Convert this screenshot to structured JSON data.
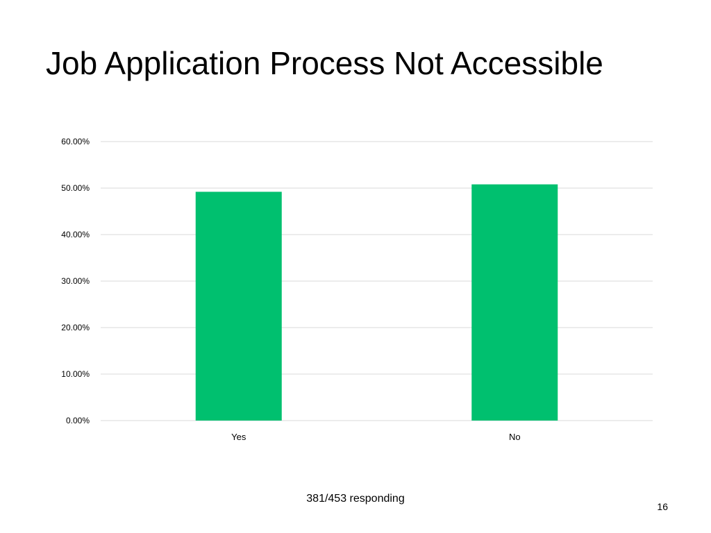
{
  "slide": {
    "title": "Job Application Process Not Accessible",
    "note": "381/453 responding",
    "page_number": "16"
  },
  "colors": {
    "bar": "#00c06f",
    "gridline": "#d9d9d9",
    "tick_text": "#000000"
  },
  "chart_data": {
    "type": "bar",
    "categories": [
      "Yes",
      "No"
    ],
    "values": [
      49.2,
      50.8
    ],
    "value_unit": "%",
    "ylim": [
      0,
      60
    ],
    "yticks": [
      0,
      10,
      20,
      30,
      40,
      50,
      60
    ],
    "ytick_labels": [
      "0.00%",
      "10.00%",
      "20.00%",
      "30.00%",
      "40.00%",
      "50.00%",
      "60.00%"
    ],
    "grid": true,
    "legend": false
  }
}
